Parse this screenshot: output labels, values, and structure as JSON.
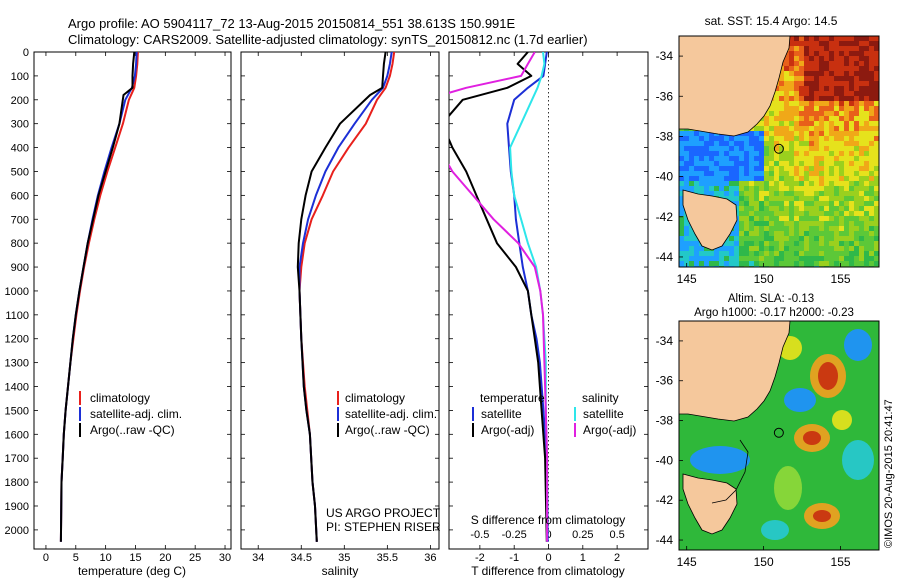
{
  "header": {
    "line1": "Argo profile: AO 5904117_72 13-Aug-2015 20150814_551 38.613S 150.991E",
    "line2": "Climatology: CARS2009. Satellite-adjusted climatology: synTS_20150812.nc (1.7d earlier)"
  },
  "colors": {
    "climatology": "#e8201c",
    "satellite_adj": "#1c2fd6",
    "argo": "#000000",
    "temp_diff_satellite": "#2ee6ea",
    "salinity_adj": "#e020e0",
    "land": "#f5c89c",
    "ocean_blue": "#1e90ff"
  },
  "credits": {
    "project": "US ARGO PROJECT",
    "pi": "PI: STEPHEN RISER",
    "timestamp": "©IMOS 20-Aug-2015 20:41:47"
  },
  "chart_data": [
    {
      "type": "line",
      "id": "temperature",
      "xlabel": "temperature (deg C)",
      "ylabel": "",
      "xlim": [
        -2,
        31
      ],
      "ylim": [
        2080,
        0
      ],
      "xticks": [
        0,
        5,
        10,
        15,
        20,
        25,
        30
      ],
      "xtick_labels": [
        "0",
        "5",
        "10",
        "15",
        "20",
        "25",
        "30"
      ],
      "yticks": [
        0,
        100,
        200,
        300,
        400,
        500,
        600,
        700,
        800,
        900,
        1000,
        1100,
        1200,
        1300,
        1400,
        1500,
        1600,
        1700,
        1800,
        1900,
        2000
      ],
      "legend": [
        "climatology",
        "satellite-adj. clim.",
        "Argo(..raw -QC)"
      ],
      "series": [
        {
          "name": "climatology",
          "color": "#e8201c",
          "x": [
            15.4,
            15.3,
            15.1,
            14.8,
            13.9,
            12.9,
            11.6,
            10.3,
            9.1,
            8.1,
            7.2,
            6.4,
            5.7,
            5.1,
            4.6,
            4.1,
            3.7,
            3.3,
            3.0,
            2.8,
            2.6,
            2.5
          ],
          "y": [
            0,
            50,
            100,
            150,
            200,
            300,
            400,
            500,
            600,
            700,
            800,
            900,
            1000,
            1100,
            1200,
            1300,
            1400,
            1500,
            1600,
            1700,
            1800,
            2050
          ]
        },
        {
          "name": "satellite-adj. clim.",
          "color": "#1c2fd6",
          "x": [
            15.2,
            15.1,
            14.9,
            14.4,
            13.3,
            12.3,
            11.0,
            9.8,
            8.7,
            7.8,
            7.0,
            6.3,
            5.6,
            5.0,
            4.5,
            4.1,
            3.7,
            3.3,
            3.0,
            2.8,
            2.6,
            2.5
          ],
          "y": [
            0,
            50,
            100,
            150,
            200,
            300,
            400,
            500,
            600,
            700,
            800,
            900,
            1000,
            1100,
            1200,
            1300,
            1400,
            1500,
            1600,
            1700,
            1800,
            2050
          ]
        },
        {
          "name": "Argo(..raw -QC)",
          "color": "#000000",
          "x": [
            14.8,
            14.6,
            14.5,
            14.5,
            13.0,
            12.3,
            11.2,
            10.0,
            8.8,
            7.9,
            7.0,
            6.3,
            5.6,
            5.0,
            4.5,
            4.1,
            3.7,
            3.3,
            3.0,
            2.8,
            2.6,
            2.5
          ],
          "y": [
            0,
            50,
            100,
            150,
            180,
            300,
            400,
            500,
            600,
            700,
            800,
            900,
            1000,
            1100,
            1200,
            1300,
            1400,
            1500,
            1600,
            1700,
            1800,
            2050
          ]
        }
      ]
    },
    {
      "type": "line",
      "id": "salinity",
      "xlabel": "salinity",
      "xlim": [
        33.8,
        36.1
      ],
      "ylim": [
        2080,
        0
      ],
      "xticks": [
        34,
        34.5,
        35,
        35.5,
        36
      ],
      "xtick_labels": [
        "34",
        "34.5",
        "35",
        "35.5",
        "36"
      ],
      "legend": [
        "climatology",
        "satellite-adj. clim.",
        "Argo(..raw -QC)"
      ],
      "series": [
        {
          "name": "climatology",
          "color": "#e8201c",
          "x": [
            35.58,
            35.56,
            35.53,
            35.48,
            35.38,
            35.25,
            35.05,
            34.87,
            34.75,
            34.62,
            34.54,
            34.5,
            34.48,
            34.5,
            34.54,
            34.57,
            34.6,
            34.63,
            34.66,
            34.68
          ],
          "y": [
            0,
            50,
            100,
            150,
            200,
            300,
            400,
            500,
            600,
            700,
            800,
            900,
            1000,
            1200,
            1400,
            1500,
            1600,
            1800,
            1900,
            2050
          ]
        },
        {
          "name": "satellite-adj. clim.",
          "color": "#1c2fd6",
          "x": [
            35.55,
            35.53,
            35.5,
            35.45,
            35.32,
            35.12,
            34.93,
            34.78,
            34.67,
            34.58,
            34.52,
            34.48,
            34.48,
            34.5,
            34.53,
            34.56,
            34.6,
            34.63,
            34.66,
            34.68
          ],
          "y": [
            0,
            50,
            100,
            150,
            200,
            300,
            400,
            500,
            600,
            700,
            800,
            900,
            1000,
            1200,
            1400,
            1500,
            1600,
            1800,
            1900,
            2050
          ]
        },
        {
          "name": "Argo(..raw -QC)",
          "color": "#000000",
          "x": [
            35.48,
            35.46,
            35.45,
            35.44,
            35.3,
            34.95,
            34.78,
            34.62,
            34.55,
            34.5,
            34.47,
            34.46,
            34.48,
            34.5,
            34.53,
            34.56,
            34.6,
            34.63,
            34.66,
            34.68
          ],
          "y": [
            0,
            50,
            100,
            150,
            180,
            300,
            400,
            500,
            600,
            700,
            800,
            900,
            1000,
            1200,
            1400,
            1500,
            1600,
            1800,
            1900,
            2050
          ]
        }
      ]
    },
    {
      "type": "line",
      "id": "difference",
      "xlabel": "T difference from climatology",
      "top_label": "S difference from climatology",
      "xlim": [
        -2.9,
        2.9
      ],
      "ylim": [
        2080,
        0
      ],
      "xticks": [
        -2,
        -1,
        0,
        1,
        2
      ],
      "xtick_labels": [
        "-2",
        "-1",
        "0",
        "1",
        "2"
      ],
      "s_ticks": [
        -0.5,
        -0.25,
        0,
        0.25,
        0.5
      ],
      "s_tick_labels": [
        "-0.5",
        "-0.25",
        "0",
        "0.25",
        "0.5"
      ],
      "legend_groups": [
        {
          "title": "temperature",
          "items": [
            "satellite",
            "Argo(-adj)"
          ]
        },
        {
          "title": "salinity",
          "items": [
            "satellite",
            "Argo(-adj)"
          ]
        }
      ],
      "series": [
        {
          "name": "temperature satellite",
          "color": "#1c2fd6",
          "x": [
            -0.05,
            -0.1,
            -0.15,
            -0.6,
            -1.0,
            -1.2,
            -1.15,
            -1.1,
            -1.0,
            -0.95,
            -0.85,
            -0.75,
            -0.6,
            -0.5,
            -0.35,
            -0.25,
            -0.15,
            -0.05,
            -0.02
          ],
          "y": [
            0,
            50,
            100,
            150,
            200,
            300,
            400,
            500,
            600,
            700,
            800,
            900,
            1000,
            1100,
            1200,
            1300,
            1500,
            1700,
            2050
          ]
        },
        {
          "name": "temperature Argo(-adj)",
          "color": "#000000",
          "x": [
            -0.6,
            -0.9,
            -0.5,
            -1.2,
            -2.5,
            -3.1,
            -2.8,
            -2.4,
            -2.1,
            -1.8,
            -1.5,
            -0.95,
            -0.6,
            -0.5,
            -0.4,
            -0.3,
            -0.2,
            -0.1,
            -0.05
          ],
          "y": [
            0,
            50,
            100,
            150,
            200,
            300,
            400,
            500,
            600,
            700,
            800,
            900,
            1000,
            1100,
            1200,
            1300,
            1500,
            1700,
            2050
          ]
        },
        {
          "name": "salinity satellite",
          "color": "#2ee6ea",
          "x": [
            -0.04,
            -0.03,
            -0.05,
            -0.08,
            -0.12,
            -0.2,
            -0.28,
            -0.27,
            -0.25,
            -0.2,
            -0.15,
            -0.09,
            -0.06,
            -0.04,
            -0.02,
            -0.02,
            -0.01,
            -0.01
          ],
          "y": [
            0,
            50,
            100,
            150,
            200,
            300,
            400,
            500,
            600,
            700,
            800,
            900,
            1000,
            1100,
            1300,
            1500,
            1700,
            2050
          ]
        },
        {
          "name": "salinity Argo(-adj)",
          "color": "#e020e0",
          "x": [
            -0.1,
            -0.15,
            -0.2,
            -0.6,
            -0.9,
            -0.85,
            -0.8,
            -0.7,
            -0.55,
            -0.4,
            -0.22,
            -0.1,
            -0.06,
            -0.04,
            -0.03,
            -0.02,
            -0.01,
            -0.01
          ],
          "y": [
            0,
            50,
            100,
            150,
            200,
            300,
            400,
            500,
            600,
            700,
            800,
            900,
            1000,
            1100,
            1300,
            1500,
            1700,
            2050
          ]
        }
      ]
    },
    {
      "type": "heatmap",
      "id": "sst_map",
      "title": "sat. SST: 15.4 Argo: 14.5",
      "xlim": [
        144.5,
        157.5
      ],
      "ylim": [
        -44.5,
        -33
      ],
      "xticks": [
        145,
        150,
        155
      ],
      "xtick_labels": [
        "145",
        "150",
        "155"
      ],
      "yticks": [
        -34,
        -36,
        -38,
        -40,
        -42,
        -44
      ],
      "ytick_labels": [
        "-34",
        "-36",
        "-38",
        "-40",
        "-42",
        "-44"
      ],
      "marker": {
        "lon": 150.991,
        "lat": -38.613
      }
    },
    {
      "type": "heatmap",
      "id": "sla_map",
      "title_line1": "Altim. SLA: -0.13",
      "title_line2": "Argo h1000: -0.17 h2000: -0.23",
      "xlim": [
        144.5,
        157.5
      ],
      "ylim": [
        -44.5,
        -33
      ],
      "xticks": [
        145,
        150,
        155
      ],
      "xtick_labels": [
        "145",
        "150",
        "155"
      ],
      "yticks": [
        -34,
        -36,
        -38,
        -40,
        -42,
        -44
      ],
      "ytick_labels": [
        "-34",
        "-36",
        "-38",
        "-40",
        "-42",
        "-44"
      ],
      "marker": {
        "lon": 150.991,
        "lat": -38.613
      }
    }
  ]
}
